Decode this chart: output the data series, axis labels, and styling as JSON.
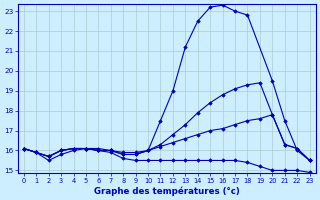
{
  "xlabel": "Graphe des températures (°c)",
  "background_color": "#cceeff",
  "line_color": "#0000bb",
  "grid_color": "#aacccc",
  "xmin": 0,
  "xmax": 23,
  "ymin": 15,
  "ymax": 23,
  "yticks": [
    15,
    16,
    17,
    18,
    19,
    20,
    21,
    22,
    23
  ],
  "xticks": [
    0,
    1,
    2,
    3,
    4,
    5,
    6,
    7,
    8,
    9,
    10,
    11,
    12,
    13,
    14,
    15,
    16,
    17,
    18,
    19,
    20,
    21,
    22,
    23
  ],
  "curves": [
    {
      "x": [
        0,
        1,
        2,
        3,
        4,
        5,
        6,
        7,
        8,
        9,
        10,
        11,
        12,
        13,
        14,
        15,
        16,
        17,
        18,
        20,
        21,
        22,
        23
      ],
      "y": [
        16.1,
        15.9,
        15.7,
        16.0,
        16.1,
        16.1,
        16.1,
        16.0,
        15.8,
        15.8,
        16.0,
        17.5,
        19.0,
        21.2,
        22.5,
        23.2,
        23.3,
        23.0,
        22.8,
        19.5,
        17.5,
        16.0,
        15.5
      ]
    },
    {
      "x": [
        0,
        1,
        2,
        3,
        4,
        5,
        6,
        7,
        8,
        9,
        10,
        11,
        12,
        13,
        14,
        15,
        16,
        17,
        18,
        19,
        20,
        21,
        22,
        23
      ],
      "y": [
        16.1,
        15.9,
        15.7,
        16.0,
        16.1,
        16.1,
        16.0,
        16.0,
        15.8,
        15.8,
        16.0,
        16.3,
        16.8,
        17.3,
        17.9,
        18.4,
        18.8,
        19.1,
        19.3,
        19.4,
        17.8,
        16.3,
        16.1,
        15.5
      ]
    },
    {
      "x": [
        0,
        1,
        2,
        3,
        4,
        5,
        6,
        7,
        8,
        9,
        10,
        11,
        12,
        13,
        14,
        15,
        16,
        17,
        18,
        19,
        20,
        21,
        22,
        23
      ],
      "y": [
        16.1,
        15.9,
        15.7,
        16.0,
        16.1,
        16.1,
        16.0,
        16.0,
        15.9,
        15.9,
        16.0,
        16.2,
        16.4,
        16.6,
        16.8,
        17.0,
        17.1,
        17.3,
        17.5,
        17.6,
        17.8,
        16.3,
        16.1,
        15.5
      ]
    },
    {
      "x": [
        0,
        1,
        2,
        3,
        4,
        5,
        6,
        7,
        8,
        9,
        10,
        11,
        12,
        13,
        14,
        15,
        16,
        17,
        18,
        19,
        20,
        21,
        22,
        23
      ],
      "y": [
        16.1,
        15.9,
        15.5,
        15.8,
        16.0,
        16.1,
        16.0,
        15.9,
        15.6,
        15.5,
        15.5,
        15.5,
        15.5,
        15.5,
        15.5,
        15.5,
        15.5,
        15.5,
        15.4,
        15.2,
        15.0,
        15.0,
        15.0,
        14.9
      ]
    }
  ]
}
